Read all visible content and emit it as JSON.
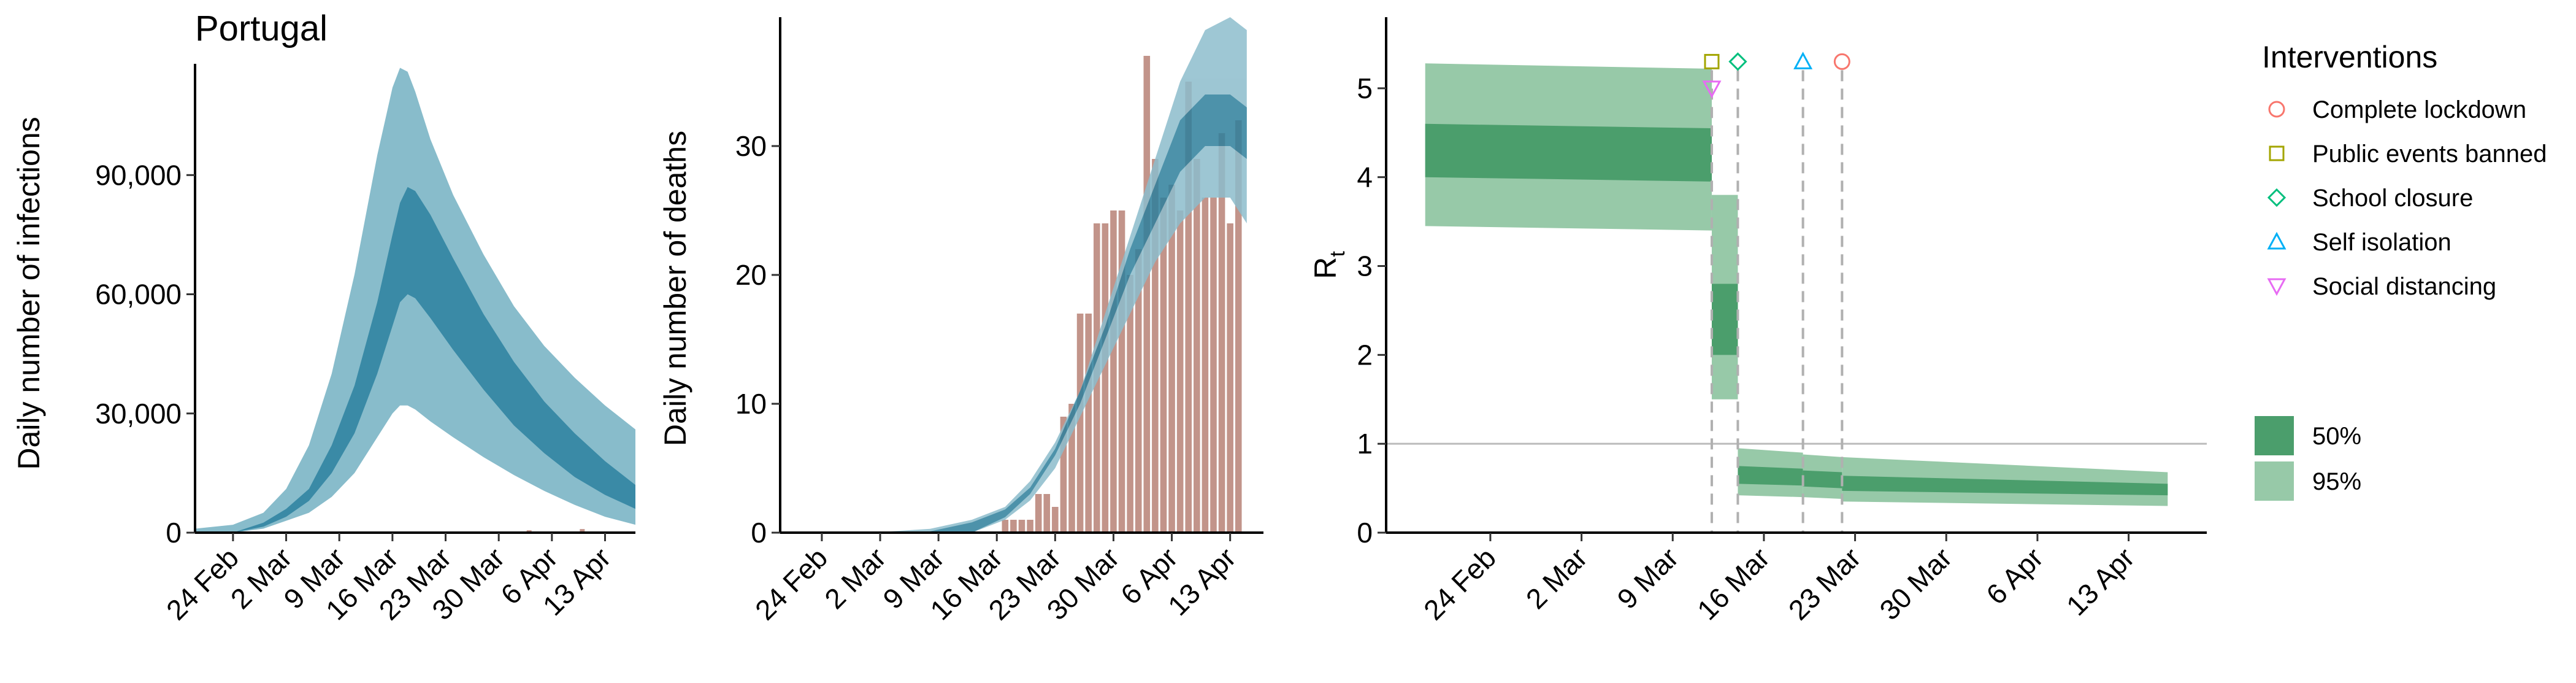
{
  "colors": {
    "infections_95": "#88bccb",
    "infections_50": "#3a8aa6",
    "deaths_95": "#8dbdcc",
    "deaths_50": "#2f7f9c",
    "observed": "#c2948a",
    "rt_95": "#97c9a8",
    "rt_50": "#4b9e6c",
    "complete_lockdown": "#f8766d",
    "public_events_banned": "#a3a500",
    "school_closure": "#00bf7d",
    "self_isolation": "#00b0f6",
    "social_distancing": "#e76bf3"
  },
  "chart_data": [
    {
      "type": "area",
      "title": "Portugal",
      "ylabel": "Daily number of infections",
      "xlabel": "",
      "x_ticks": [
        "24 Feb",
        "2 Mar",
        "9 Mar",
        "16 Mar",
        "23 Mar",
        "30 Mar",
        "6 Apr",
        "13 Apr"
      ],
      "y_ticks": [
        "0",
        "30,000",
        "60,000",
        "90,000"
      ],
      "x_range": [
        "2020-02-19",
        "2020-04-17"
      ],
      "ylim": [
        0,
        118000
      ],
      "series": [
        {
          "band": "95",
          "x": [
            "2020-02-19",
            "2020-02-24",
            "2020-02-28",
            "2020-03-02",
            "2020-03-05",
            "2020-03-08",
            "2020-03-11",
            "2020-03-14",
            "2020-03-16",
            "2020-03-17",
            "2020-03-18",
            "2020-03-19",
            "2020-03-21",
            "2020-03-24",
            "2020-03-28",
            "2020-04-01",
            "2020-04-05",
            "2020-04-09",
            "2020-04-13",
            "2020-04-17"
          ],
          "low": [
            0,
            0,
            1000,
            3000,
            5000,
            9000,
            15000,
            24000,
            30000,
            32000,
            32000,
            31000,
            28000,
            24000,
            19000,
            14500,
            10500,
            7000,
            4000,
            2000
          ],
          "high": [
            1000,
            2000,
            5000,
            11000,
            22000,
            40000,
            65000,
            95000,
            112000,
            117000,
            116000,
            111000,
            99000,
            85000,
            70000,
            57000,
            47000,
            39000,
            32000,
            26000
          ]
        },
        {
          "band": "50",
          "x": [
            "2020-02-24",
            "2020-02-28",
            "2020-03-02",
            "2020-03-05",
            "2020-03-08",
            "2020-03-11",
            "2020-03-14",
            "2020-03-16",
            "2020-03-17",
            "2020-03-18",
            "2020-03-19",
            "2020-03-21",
            "2020-03-24",
            "2020-03-28",
            "2020-04-01",
            "2020-04-05",
            "2020-04-09",
            "2020-04-13",
            "2020-04-17"
          ],
          "low": [
            0,
            1500,
            4000,
            8000,
            15000,
            25000,
            40000,
            52000,
            58000,
            60000,
            59000,
            54000,
            46000,
            36000,
            27000,
            20000,
            14000,
            9500,
            6000
          ],
          "high": [
            0,
            2500,
            6000,
            11000,
            22000,
            37000,
            58000,
            75000,
            83000,
            87000,
            86000,
            80000,
            69000,
            55000,
            43000,
            33000,
            25000,
            18000,
            12000
          ]
        }
      ],
      "observed": {
        "x": [
          "2020-03-30",
          "2020-04-03",
          "2020-04-10"
        ],
        "values": [
          300,
          600,
          900
        ]
      }
    },
    {
      "type": "bar",
      "ylabel": "Daily number of deaths",
      "xlabel": "",
      "x_ticks": [
        "24 Feb",
        "2 Mar",
        "9 Mar",
        "16 Mar",
        "23 Mar",
        "30 Mar",
        "6 Apr",
        "13 Apr"
      ],
      "y_ticks": [
        "0",
        "10",
        "20",
        "30"
      ],
      "x_range": [
        "2020-02-19",
        "2020-04-17"
      ],
      "ylim": [
        0,
        40
      ],
      "observed": {
        "start": "2020-03-17",
        "values": [
          1,
          1,
          1,
          1,
          3,
          3,
          2,
          9,
          10,
          17,
          17,
          24,
          24,
          25,
          25,
          20,
          22,
          37,
          29,
          26,
          27,
          25,
          35,
          29,
          26,
          26,
          31,
          24,
          32
        ]
      },
      "series": [
        {
          "band": "95",
          "x": [
            "2020-02-19",
            "2020-03-01",
            "2020-03-08",
            "2020-03-13",
            "2020-03-17",
            "2020-03-20",
            "2020-03-23",
            "2020-03-26",
            "2020-03-29",
            "2020-04-01",
            "2020-04-04",
            "2020-04-07",
            "2020-04-10",
            "2020-04-13",
            "2020-04-15"
          ],
          "low": [
            0,
            0,
            0,
            0,
            1,
            2.5,
            5,
            9,
            13,
            17,
            21,
            24,
            26,
            26,
            24
          ],
          "high": [
            0,
            0,
            0.3,
            1,
            2,
            4,
            7,
            11,
            17,
            23,
            29,
            35,
            39,
            40,
            39
          ]
        },
        {
          "band": "50",
          "x": [
            "2020-02-19",
            "2020-03-01",
            "2020-03-08",
            "2020-03-13",
            "2020-03-17",
            "2020-03-20",
            "2020-03-23",
            "2020-03-26",
            "2020-03-29",
            "2020-04-01",
            "2020-04-04",
            "2020-04-07",
            "2020-04-10",
            "2020-04-13",
            "2020-04-15"
          ],
          "low": [
            0,
            0,
            0,
            0,
            1.2,
            3,
            6,
            10,
            15,
            20,
            24,
            28,
            30,
            30,
            29
          ],
          "high": [
            0,
            0,
            0.1,
            0.8,
            1.8,
            3.5,
            6.5,
            11,
            16,
            22,
            27,
            32,
            34,
            34,
            33
          ]
        }
      ]
    },
    {
      "type": "area",
      "ylabel": "R",
      "ylabel_sub": "t",
      "xlabel": "",
      "x_ticks": [
        "24 Feb",
        "2 Mar",
        "9 Mar",
        "16 Mar",
        "23 Mar",
        "30 Mar",
        "6 Apr",
        "13 Apr"
      ],
      "y_ticks": [
        "0",
        "1",
        "2",
        "3",
        "4",
        "5"
      ],
      "x_range": [
        "2020-02-16",
        "2020-04-19"
      ],
      "ylim": [
        0,
        5.8
      ],
      "reference_line": 1,
      "segments": [
        {
          "start": "2020-02-19",
          "end": "2020-03-12",
          "low95_start": 3.45,
          "low95_end": 3.4,
          "high95_start": 5.28,
          "high95_end": 5.22,
          "low50_start": 4.0,
          "low50_end": 3.95,
          "high50_start": 4.6,
          "high50_end": 4.55
        },
        {
          "start": "2020-03-12",
          "end": "2020-03-14",
          "low95_start": 1.5,
          "low95_end": 1.5,
          "high95_start": 3.8,
          "high95_end": 3.8,
          "low50_start": 2.0,
          "low50_end": 2.0,
          "high50_start": 2.8,
          "high50_end": 2.8
        },
        {
          "start": "2020-03-14",
          "end": "2020-03-19",
          "low95_start": 0.42,
          "low95_end": 0.4,
          "high95_start": 0.95,
          "high95_end": 0.9,
          "low50_start": 0.55,
          "low50_end": 0.53,
          "high50_start": 0.75,
          "high50_end": 0.72
        },
        {
          "start": "2020-03-19",
          "end": "2020-03-22",
          "low95_start": 0.4,
          "low95_end": 0.38,
          "high95_start": 0.88,
          "high95_end": 0.85,
          "low50_start": 0.52,
          "low50_end": 0.5,
          "high50_start": 0.7,
          "high50_end": 0.68
        },
        {
          "start": "2020-03-22",
          "end": "2020-04-16",
          "low95_start": 0.35,
          "low95_end": 0.3,
          "high95_start": 0.85,
          "high95_end": 0.68,
          "low50_start": 0.47,
          "low50_end": 0.42,
          "high50_start": 0.64,
          "high50_end": 0.55
        }
      ],
      "interventions": [
        {
          "key": "public_events_banned",
          "date": "2020-03-12",
          "y": 5.3,
          "shape": "square",
          "dashed": true
        },
        {
          "key": "social_distancing",
          "date": "2020-03-12",
          "y": 5.0,
          "shape": "triangle-down",
          "dashed": false
        },
        {
          "key": "school_closure",
          "date": "2020-03-14",
          "y": 5.3,
          "shape": "diamond",
          "dashed": true
        },
        {
          "key": "self_isolation",
          "date": "2020-03-19",
          "y": 5.3,
          "shape": "triangle-up",
          "dashed": true
        },
        {
          "key": "complete_lockdown",
          "date": "2020-03-22",
          "y": 5.3,
          "shape": "circle",
          "dashed": true
        }
      ],
      "legend": {
        "title": "Interventions",
        "items": [
          {
            "key": "complete_lockdown",
            "label": "Complete lockdown",
            "shape": "circle"
          },
          {
            "key": "public_events_banned",
            "label": "Public events banned",
            "shape": "square"
          },
          {
            "key": "school_closure",
            "label": "School closure",
            "shape": "diamond"
          },
          {
            "key": "self_isolation",
            "label": "Self isolation",
            "shape": "triangle-up"
          },
          {
            "key": "social_distancing",
            "label": "Social distancing",
            "shape": "triangle-down"
          }
        ],
        "bands": [
          {
            "label": "50%",
            "color_key": "rt_50"
          },
          {
            "label": "95%",
            "color_key": "rt_95"
          }
        ]
      }
    }
  ]
}
